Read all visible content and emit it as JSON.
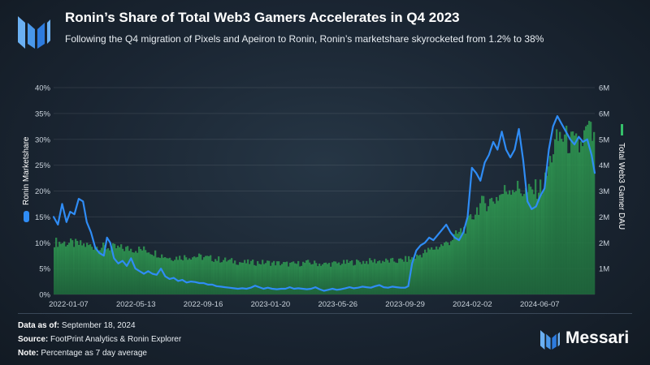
{
  "header": {
    "title": "Ronin’s Share of Total Web3 Gamers Accelerates in Q4 2023",
    "subtitle": "Following the Q4 migration of Pixels and Apeiron to Ronin, Ronin’s marketshare skyrocketed from 1.2% to 38%"
  },
  "footer": {
    "data_label": "Data as of:",
    "data_value": "September 18, 2024",
    "source_label": "Source:",
    "source_value": "FootPrint Analytics & Ronin Explorer",
    "note_label": "Note:",
    "note_value": "Percentage as 7 day average",
    "brand": "Messari"
  },
  "colors": {
    "line": "#2f8cf5",
    "bars": "#2f9a52",
    "background": "#1c2733"
  },
  "chart_data": {
    "type": "line+bar",
    "title": "Ronin’s Share of Total Web3 Gamers Accelerates in Q4 2023",
    "x_tick_labels": [
      "2022-01-07",
      "2022-05-13",
      "2022-09-16",
      "2023-01-20",
      "2023-05-26",
      "2023-09-29",
      "2024-02-02",
      "2024-06-07"
    ],
    "y_left": {
      "label": "Ronin Marketshare",
      "ticks": [
        "0%",
        "5%",
        "10%",
        "15%",
        "20%",
        "25%",
        "30%",
        "35%",
        "40%"
      ],
      "range": [
        0,
        40
      ]
    },
    "y_right": {
      "label": "Total Web3 Gamer DAU",
      "ticks": [
        "1M",
        "2M",
        "2M",
        "3M",
        "4M",
        "5M",
        "6M",
        "6M"
      ],
      "range": [
        0,
        6.5
      ]
    },
    "date_range": [
      "2021-12-10",
      "2024-09-18"
    ],
    "series": [
      {
        "name": "Ronin Marketshare",
        "axis": "left",
        "kind": "line",
        "points": [
          [
            "2021-12-10",
            15
          ],
          [
            "2021-12-18",
            13.5
          ],
          [
            "2021-12-26",
            17.5
          ],
          [
            "2022-01-03",
            14
          ],
          [
            "2022-01-10",
            16
          ],
          [
            "2022-01-18",
            15.5
          ],
          [
            "2022-01-26",
            18.5
          ],
          [
            "2022-02-03",
            18
          ],
          [
            "2022-02-10",
            14
          ],
          [
            "2022-02-18",
            12
          ],
          [
            "2022-02-26",
            9
          ],
          [
            "2022-03-06",
            8
          ],
          [
            "2022-03-14",
            7.5
          ],
          [
            "2022-03-20",
            11
          ],
          [
            "2022-03-26",
            10
          ],
          [
            "2022-04-02",
            7
          ],
          [
            "2022-04-10",
            6
          ],
          [
            "2022-04-18",
            6.5
          ],
          [
            "2022-04-26",
            5.5
          ],
          [
            "2022-05-04",
            7
          ],
          [
            "2022-05-12",
            5
          ],
          [
            "2022-05-20",
            4.5
          ],
          [
            "2022-05-28",
            4
          ],
          [
            "2022-06-05",
            4.5
          ],
          [
            "2022-06-13",
            4
          ],
          [
            "2022-06-21",
            3.8
          ],
          [
            "2022-06-29",
            5
          ],
          [
            "2022-07-07",
            3.5
          ],
          [
            "2022-07-15",
            3
          ],
          [
            "2022-07-23",
            3.2
          ],
          [
            "2022-07-31",
            2.6
          ],
          [
            "2022-08-08",
            2.8
          ],
          [
            "2022-08-16",
            2.3
          ],
          [
            "2022-08-24",
            2.5
          ],
          [
            "2022-09-01",
            2.4
          ],
          [
            "2022-09-09",
            2.2
          ],
          [
            "2022-09-17",
            2.2
          ],
          [
            "2022-09-25",
            1.9
          ],
          [
            "2022-10-03",
            1.9
          ],
          [
            "2022-10-11",
            1.6
          ],
          [
            "2022-10-19",
            1.5
          ],
          [
            "2022-10-27",
            1.4
          ],
          [
            "2022-11-04",
            1.3
          ],
          [
            "2022-11-12",
            1.2
          ],
          [
            "2022-11-20",
            1.1
          ],
          [
            "2022-11-28",
            1.2
          ],
          [
            "2022-12-06",
            1.1
          ],
          [
            "2022-12-14",
            1.3
          ],
          [
            "2022-12-22",
            1.7
          ],
          [
            "2022-12-30",
            1.4
          ],
          [
            "2023-01-07",
            1.1
          ],
          [
            "2023-01-15",
            1.3
          ],
          [
            "2023-01-23",
            1.1
          ],
          [
            "2023-02-01",
            1.0
          ],
          [
            "2023-02-09",
            1.1
          ],
          [
            "2023-02-17",
            1.1
          ],
          [
            "2023-02-25",
            1.4
          ],
          [
            "2023-03-05",
            1.1
          ],
          [
            "2023-03-13",
            1.2
          ],
          [
            "2023-03-21",
            1.1
          ],
          [
            "2023-03-29",
            1.0
          ],
          [
            "2023-04-06",
            1.1
          ],
          [
            "2023-04-14",
            1.4
          ],
          [
            "2023-04-22",
            1.0
          ],
          [
            "2023-04-30",
            0.7
          ],
          [
            "2023-05-08",
            0.9
          ],
          [
            "2023-05-16",
            1.1
          ],
          [
            "2023-05-24",
            0.9
          ],
          [
            "2023-06-01",
            1.0
          ],
          [
            "2023-06-09",
            1.2
          ],
          [
            "2023-06-17",
            1.4
          ],
          [
            "2023-06-25",
            1.2
          ],
          [
            "2023-07-03",
            1.3
          ],
          [
            "2023-07-11",
            1.5
          ],
          [
            "2023-07-19",
            1.4
          ],
          [
            "2023-07-27",
            1.3
          ],
          [
            "2023-08-04",
            1.6
          ],
          [
            "2023-08-12",
            1.8
          ],
          [
            "2023-08-20",
            1.4
          ],
          [
            "2023-08-28",
            1.3
          ],
          [
            "2023-09-05",
            1.5
          ],
          [
            "2023-09-13",
            1.4
          ],
          [
            "2023-09-21",
            1.3
          ],
          [
            "2023-09-29",
            1.3
          ],
          [
            "2023-10-05",
            1.6
          ],
          [
            "2023-10-12",
            6
          ],
          [
            "2023-10-20",
            8.5
          ],
          [
            "2023-10-28",
            9.5
          ],
          [
            "2023-11-05",
            10
          ],
          [
            "2023-11-13",
            11
          ],
          [
            "2023-11-21",
            10.5
          ],
          [
            "2023-11-29",
            11.5
          ],
          [
            "2023-12-07",
            12.5
          ],
          [
            "2023-12-15",
            13.5
          ],
          [
            "2023-12-23",
            12
          ],
          [
            "2023-12-31",
            11
          ],
          [
            "2024-01-08",
            10.5
          ],
          [
            "2024-01-16",
            12
          ],
          [
            "2024-01-24",
            15
          ],
          [
            "2024-02-01",
            24.5
          ],
          [
            "2024-02-09",
            23.5
          ],
          [
            "2024-02-17",
            22
          ],
          [
            "2024-02-25",
            25.5
          ],
          [
            "2024-03-04",
            27
          ],
          [
            "2024-03-12",
            29.5
          ],
          [
            "2024-03-20",
            28
          ],
          [
            "2024-03-28",
            31.5
          ],
          [
            "2024-04-05",
            28
          ],
          [
            "2024-04-13",
            26.5
          ],
          [
            "2024-04-21",
            28
          ],
          [
            "2024-04-29",
            32
          ],
          [
            "2024-05-07",
            26
          ],
          [
            "2024-05-15",
            18
          ],
          [
            "2024-05-23",
            16.5
          ],
          [
            "2024-05-31",
            17
          ],
          [
            "2024-06-08",
            19
          ],
          [
            "2024-06-16",
            20.5
          ],
          [
            "2024-06-24",
            28
          ],
          [
            "2024-07-02",
            32.5
          ],
          [
            "2024-07-10",
            34.5
          ],
          [
            "2024-07-18",
            33
          ],
          [
            "2024-07-26",
            31.5
          ],
          [
            "2024-08-03",
            30
          ],
          [
            "2024-08-11",
            29
          ],
          [
            "2024-08-19",
            30.5
          ],
          [
            "2024-08-27",
            29.5
          ],
          [
            "2024-09-04",
            30
          ],
          [
            "2024-09-12",
            27
          ],
          [
            "2024-09-18",
            23.5
          ]
        ]
      },
      {
        "name": "Total Web3 Gamer DAU",
        "axis": "right",
        "kind": "bar",
        "points": [
          [
            "2021-12-10",
            1.65
          ],
          [
            "2022-01-15",
            1.6
          ],
          [
            "2022-03-01",
            1.5
          ],
          [
            "2022-04-15",
            1.45
          ],
          [
            "2022-06-01",
            1.4
          ],
          [
            "2022-07-15",
            1.15
          ],
          [
            "2022-09-01",
            1.2
          ],
          [
            "2022-10-15",
            1.1
          ],
          [
            "2022-12-01",
            1.0
          ],
          [
            "2023-01-15",
            1.0
          ],
          [
            "2023-03-01",
            0.95
          ],
          [
            "2023-04-01",
            1.0
          ],
          [
            "2023-05-01",
            0.95
          ],
          [
            "2023-06-15",
            1.0
          ],
          [
            "2023-08-01",
            1.05
          ],
          [
            "2023-09-15",
            1.05
          ],
          [
            "2023-10-15",
            1.15
          ],
          [
            "2023-11-15",
            1.4
          ],
          [
            "2023-12-15",
            1.6
          ],
          [
            "2024-01-20",
            2.1
          ],
          [
            "2024-02-15",
            2.8
          ],
          [
            "2024-03-15",
            3.0
          ],
          [
            "2024-04-15",
            3.4
          ],
          [
            "2024-05-15",
            3.2
          ],
          [
            "2024-06-15",
            3.4
          ],
          [
            "2024-07-01",
            4.5
          ],
          [
            "2024-07-15",
            5.0
          ],
          [
            "2024-08-01",
            4.8
          ],
          [
            "2024-08-20",
            4.6
          ],
          [
            "2024-09-05",
            5.2
          ],
          [
            "2024-09-18",
            4.8
          ]
        ]
      }
    ]
  }
}
